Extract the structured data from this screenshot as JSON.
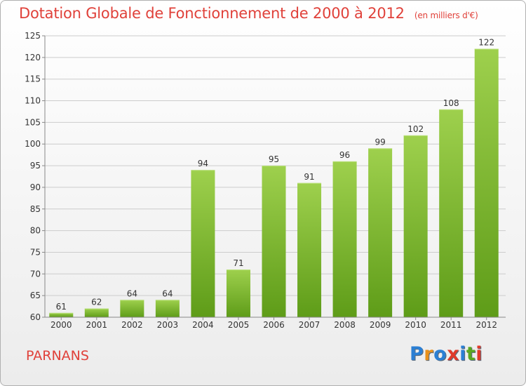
{
  "header": {
    "title": "Dotation Globale de Fonctionnement de 2000 à 2012",
    "unit": "(en milliers d'€)"
  },
  "footer": {
    "commune": "PARNANS",
    "logo_text": "Proxiti",
    "logo_colors": [
      "#2b7fd4",
      "#e8901a",
      "#2b7fd4",
      "#e03a2a",
      "#2b7fd4",
      "#5aa820",
      "#e03a2a"
    ]
  },
  "colors": {
    "bar_light": "#9ed04d",
    "bar_dark": "#5e9c18",
    "title_red": "#e0413a",
    "grid": "#cccccc"
  },
  "chart_data": {
    "type": "bar",
    "title": "Dotation Globale de Fonctionnement de 2000 à 2012",
    "subtitle": "(en milliers d'€)",
    "categories": [
      "2000",
      "2001",
      "2002",
      "2003",
      "2004",
      "2005",
      "2006",
      "2007",
      "2008",
      "2009",
      "2010",
      "2011",
      "2012"
    ],
    "values": [
      61,
      62,
      64,
      64,
      94,
      71,
      95,
      91,
      96,
      99,
      102,
      108,
      122
    ],
    "ylim": [
      60,
      125
    ],
    "yticks": [
      60,
      65,
      70,
      75,
      80,
      85,
      90,
      95,
      100,
      105,
      110,
      115,
      120,
      125
    ],
    "grid": true,
    "data_labels": true
  }
}
